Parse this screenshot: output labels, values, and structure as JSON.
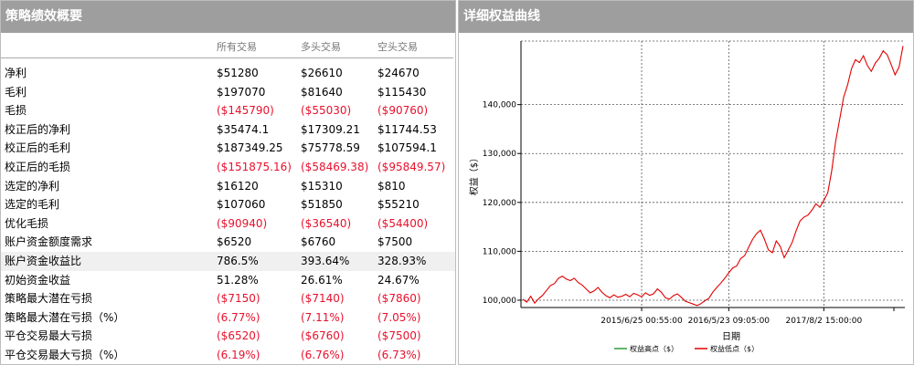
{
  "left_panel": {
    "title": "策略绩效概要",
    "columns": [
      "所有交易",
      "多头交易",
      "空头交易"
    ],
    "rows": [
      {
        "label": "净利",
        "values": [
          "$51280",
          "$26610",
          "$24670"
        ],
        "negative": false
      },
      {
        "label": "毛利",
        "values": [
          "$197070",
          "$81640",
          "$115430"
        ],
        "negative": false
      },
      {
        "label": "毛损",
        "values": [
          "($145790)",
          "($55030)",
          "($90760)"
        ],
        "negative": true
      },
      {
        "label": "校正后的净利",
        "values": [
          "$35474.1",
          "$17309.21",
          "$11744.53"
        ],
        "negative": false
      },
      {
        "label": "校正后的毛利",
        "values": [
          "$187349.25",
          "$75778.59",
          "$107594.1"
        ],
        "negative": false
      },
      {
        "label": "校正后的毛损",
        "values": [
          "($151875.16)",
          "($58469.38)",
          "($95849.57)"
        ],
        "negative": true
      },
      {
        "label": "选定的净利",
        "values": [
          "$16120",
          "$15310",
          "$810"
        ],
        "negative": false
      },
      {
        "label": "选定的毛利",
        "values": [
          "$107060",
          "$51850",
          "$55210"
        ],
        "negative": false
      },
      {
        "label": "优化毛损",
        "values": [
          "($90940)",
          "($36540)",
          "($54400)"
        ],
        "negative": true
      },
      {
        "label": "账户资金额度需求",
        "values": [
          "$6520",
          "$6760",
          "$7500"
        ],
        "negative": false
      },
      {
        "label": "账户资金收益比",
        "values": [
          "786.5%",
          "393.64%",
          "328.93%"
        ],
        "negative": false,
        "highlight": true
      },
      {
        "label": "初始资金收益",
        "values": [
          "51.28%",
          "26.61%",
          "24.67%"
        ],
        "negative": false
      },
      {
        "label": "策略最大潜在亏损",
        "values": [
          "($7150)",
          "($7140)",
          "($7860)"
        ],
        "negative": true
      },
      {
        "label": "策略最大潜在亏损（%）",
        "values": [
          "(6.77%)",
          "(7.11%)",
          "(7.05%)"
        ],
        "negative": true
      },
      {
        "label": "平仓交易最大亏损",
        "values": [
          "($6520)",
          "($6760)",
          "($7500)"
        ],
        "negative": true
      },
      {
        "label": "平仓交易最大亏损（%）",
        "values": [
          "(6.19%)",
          "(6.76%)",
          "(6.73%)"
        ],
        "negative": true
      }
    ]
  },
  "right_panel": {
    "title": "详细权益曲线"
  },
  "chart_data": {
    "type": "line",
    "ylabel": "权益（$）",
    "xlabel": "日期",
    "ylim": [
      98500,
      153000
    ],
    "yticks": [
      100000,
      110000,
      120000,
      130000,
      140000
    ],
    "ytick_labels": [
      "100,000",
      "110,000",
      "120,000",
      "130,000",
      "140,000"
    ],
    "xtick_labels": [
      "2015/6/25 00:55:00",
      "2016/5/23 09:05:00",
      "2017/8/2 15:00:00"
    ],
    "xtick_index": [
      30,
      52,
      76
    ],
    "n_points": 97,
    "grid": true,
    "legend_position": "bottom-center",
    "series": [
      {
        "name": "权益高点（$）",
        "color": "#2e9e3a",
        "values": []
      },
      {
        "name": "权益低点（$）",
        "color": "#e00000",
        "values": [
          100200,
          99600,
          100800,
          99400,
          100300,
          101000,
          102000,
          103000,
          103400,
          104500,
          104900,
          104300,
          104000,
          104500,
          103600,
          103100,
          102300,
          101500,
          101900,
          102600,
          101600,
          100900,
          100500,
          101100,
          100600,
          100800,
          101200,
          100700,
          101400,
          101100,
          100700,
          101500,
          101000,
          101300,
          102300,
          101600,
          100500,
          100200,
          100900,
          101300,
          100600,
          99800,
          99500,
          99200,
          98900,
          99300,
          99900,
          100400,
          101700,
          102600,
          103500,
          104500,
          105600,
          106600,
          107000,
          108500,
          109100,
          110800,
          112400,
          113600,
          114300,
          112500,
          110300,
          109700,
          112100,
          111000,
          108700,
          110200,
          111800,
          114200,
          116200,
          117000,
          117400,
          118400,
          119700,
          119000,
          120400,
          122000,
          126500,
          132500,
          137000,
          141500,
          144000,
          147400,
          149200,
          148600,
          150000,
          148000,
          146800,
          148500,
          149500,
          151000,
          150200,
          148200,
          146100,
          147700,
          152000
        ]
      }
    ]
  }
}
